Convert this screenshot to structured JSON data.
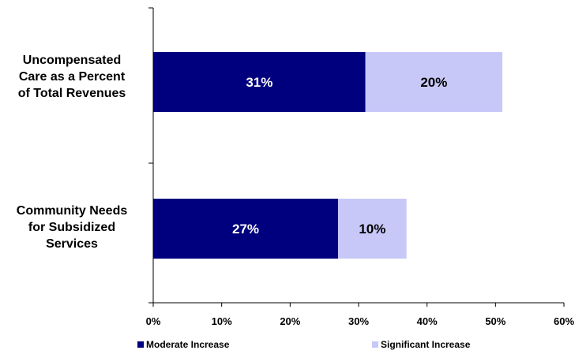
{
  "chart_data": {
    "type": "bar",
    "orientation": "horizontal",
    "stacked": true,
    "categories": [
      [
        "Uncompensated",
        "Care as a Percent",
        "of Total Revenues"
      ],
      [
        "Community Needs",
        "for Subsidized",
        "Services"
      ]
    ],
    "series": [
      {
        "name": "Moderate Increase",
        "values": [
          31,
          27
        ],
        "labels": [
          "31%",
          "27%"
        ],
        "color": "#00007e"
      },
      {
        "name": "Significant Increase",
        "values": [
          20,
          10
        ],
        "labels": [
          "20%",
          "10%"
        ],
        "color": "#c8c8f8"
      }
    ],
    "xlim": [
      0,
      60
    ],
    "xticks": [
      0,
      10,
      20,
      30,
      40,
      50,
      60
    ],
    "xtick_labels": [
      "0%",
      "10%",
      "20%",
      "30%",
      "40%",
      "50%",
      "60%"
    ],
    "grid": false,
    "legend_position": "bottom",
    "title": "",
    "xlabel": "",
    "ylabel": ""
  }
}
